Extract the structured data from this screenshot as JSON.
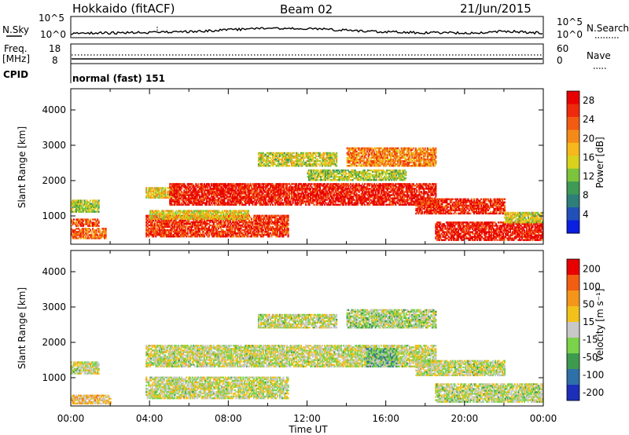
{
  "header": {
    "title": "Hokkaido (fitACF)",
    "beam": "Beam 02",
    "date": "21/Jun/2015"
  },
  "strip": {
    "nsky_label": "N.Sky",
    "nsearch_label": "N.Search",
    "nsky_ticks": [
      "10^5",
      "10^0"
    ],
    "nsky_right_ticks": [
      "10^5",
      "10^0"
    ],
    "freq_label_line1": "Freq.",
    "freq_label_line2": "[MHz]",
    "freq_ticks": [
      "18",
      "8"
    ],
    "nave_label": "Nave",
    "nave_ticks": [
      "60",
      "0"
    ],
    "cpid_label": "CPID",
    "cpid_text": "normal (fast) 151"
  },
  "chart_data": [
    {
      "type": "heatmap",
      "name": "power",
      "xlabel": "",
      "ylabel": "Slant Range [km]",
      "xlim": [
        0,
        24
      ],
      "ylim": [
        200,
        4600
      ],
      "yticks": [
        1000,
        2000,
        3000,
        4000
      ],
      "colorbar": {
        "label": "Power [dB]",
        "ticks": [
          "4",
          "8",
          "12",
          "16",
          "20",
          "24",
          "28"
        ],
        "colors": [
          "#0b1fe0",
          "#2150b8",
          "#2e7f7a",
          "#3e9a55",
          "#7cc43c",
          "#d8d21c",
          "#f6b81c",
          "#f58a18",
          "#f25c12",
          "#ef2a0c",
          "#e80000"
        ]
      },
      "bands": [
        {
          "t0": 0.0,
          "t1": 1.4,
          "r0": 1100,
          "r1": 1450,
          "level": 0.45
        },
        {
          "t0": 0.0,
          "t1": 1.4,
          "r0": 700,
          "r1": 900,
          "level": 0.8
        },
        {
          "t0": 0.0,
          "t1": 1.8,
          "r0": 350,
          "r1": 650,
          "level": 0.75
        },
        {
          "t0": 3.8,
          "t1": 5.5,
          "r0": 1500,
          "r1": 1800,
          "level": 0.55
        },
        {
          "t0": 5.0,
          "t1": 18.5,
          "r0": 1300,
          "r1": 1900,
          "level": 0.92
        },
        {
          "t0": 3.8,
          "t1": 11.0,
          "r0": 400,
          "r1": 1000,
          "level": 0.85
        },
        {
          "t0": 4.0,
          "t1": 9.0,
          "r0": 900,
          "r1": 1150,
          "level": 0.55
        },
        {
          "t0": 12.0,
          "t1": 17.0,
          "r0": 2000,
          "r1": 2300,
          "level": 0.45
        },
        {
          "t0": 14.0,
          "t1": 18.5,
          "r0": 2400,
          "r1": 2900,
          "level": 0.7
        },
        {
          "t0": 9.5,
          "t1": 13.5,
          "r0": 2400,
          "r1": 2800,
          "level": 0.5
        },
        {
          "t0": 17.5,
          "t1": 22.0,
          "r0": 1050,
          "r1": 1500,
          "level": 0.88
        },
        {
          "t0": 18.5,
          "t1": 24.0,
          "r0": 300,
          "r1": 800,
          "level": 0.93
        },
        {
          "t0": 22.0,
          "t1": 24.0,
          "r0": 800,
          "r1": 1100,
          "level": 0.5
        }
      ]
    },
    {
      "type": "heatmap",
      "name": "velocity",
      "xlabel": "Time UT",
      "ylabel": "Slant Range [km]",
      "xlim": [
        0,
        24
      ],
      "ylim": [
        200,
        4600
      ],
      "xticks": [
        "00:00",
        "04:00",
        "08:00",
        "12:00",
        "16:00",
        "20:00",
        "00:00"
      ],
      "yticks": [
        1000,
        2000,
        3000,
        4000
      ],
      "colorbar": {
        "label": "Velocity [m s⁻¹]",
        "ticks": [
          "200",
          "100",
          "50",
          "15",
          "-15",
          "-50",
          "-100",
          "-200"
        ],
        "colors": [
          "#1b2fb8",
          "#2e70a8",
          "#3d9a4e",
          "#7ad34a",
          "#c8c8c8",
          "#f2c21a",
          "#f5951a",
          "#f25d12",
          "#e80000"
        ]
      },
      "bands": [
        {
          "t0": 0.0,
          "t1": 1.4,
          "r0": 1100,
          "r1": 1450,
          "level": 0.5
        },
        {
          "t0": 3.8,
          "t1": 18.5,
          "r0": 1300,
          "r1": 1900,
          "level": 0.5
        },
        {
          "t0": 3.8,
          "t1": 11.0,
          "r0": 400,
          "r1": 1000,
          "level": 0.5
        },
        {
          "t0": 14.0,
          "t1": 18.5,
          "r0": 2400,
          "r1": 2900,
          "level": 0.45
        },
        {
          "t0": 9.5,
          "t1": 13.5,
          "r0": 2400,
          "r1": 2800,
          "level": 0.5
        },
        {
          "t0": 17.5,
          "t1": 22.0,
          "r0": 1050,
          "r1": 1500,
          "level": 0.5
        },
        {
          "t0": 18.5,
          "t1": 24.0,
          "r0": 300,
          "r1": 800,
          "level": 0.48
        },
        {
          "t0": 15.0,
          "t1": 16.5,
          "r0": 1300,
          "r1": 1800,
          "level": 0.35
        },
        {
          "t0": 0.0,
          "t1": 2.0,
          "r0": 250,
          "r1": 500,
          "level": 0.62
        }
      ]
    }
  ]
}
